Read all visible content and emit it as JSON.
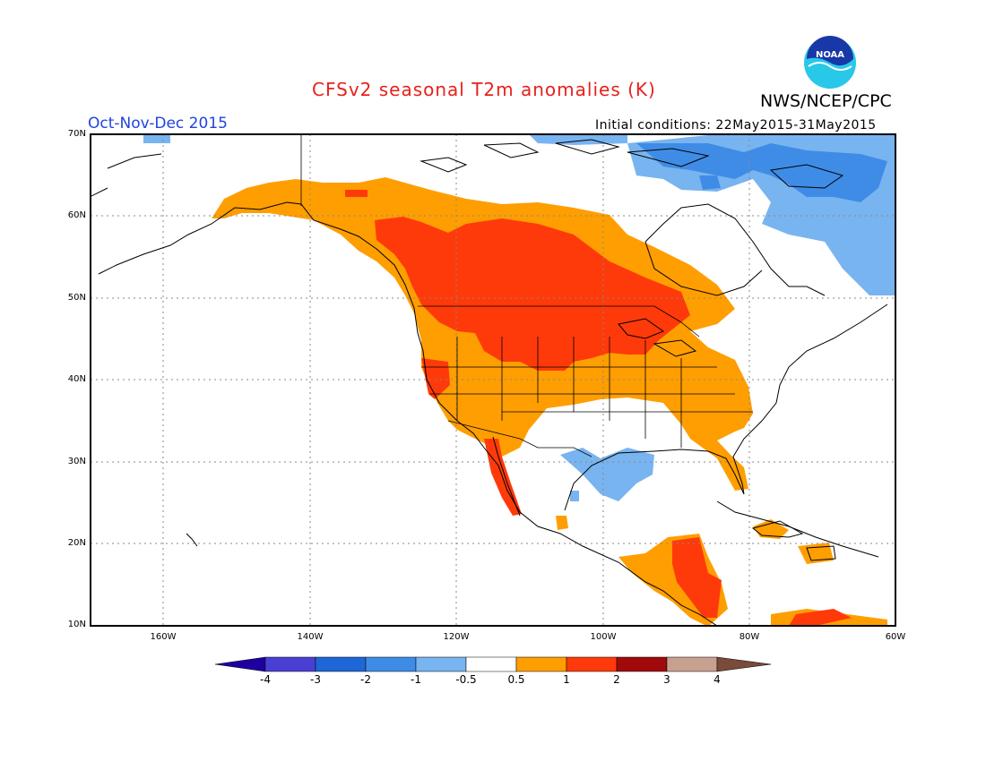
{
  "header": {
    "title": "CFSv2 seasonal T2m anomalies (K)",
    "agency": "NWS/NCEP/CPC",
    "season": "Oct-Nov-Dec 2015",
    "initial_conditions": "Initial conditions: 22May2015-31May2015",
    "logo_text": "NOAA"
  },
  "map": {
    "lat_labels": [
      "70N",
      "60N",
      "50N",
      "40N",
      "30N",
      "20N",
      "10N"
    ],
    "lon_labels": [
      "160W",
      "140W",
      "120W",
      "100W",
      "80W",
      "60W"
    ],
    "lat_range": [
      10,
      70
    ],
    "lon_range": [
      -170,
      -60
    ],
    "anomaly_regions": [
      {
        "name": "Western Canada and northern U.S. Plains",
        "category": "1 to 2"
      },
      {
        "name": "Alaska, western Canada, western and central U.S.",
        "category": "0.5 to 1"
      },
      {
        "name": "Southern U.S. Plains and Southeast",
        "category": "-0.5 to 0.5"
      },
      {
        "name": "Texas Gulf coast and northern Mexico",
        "category": "-1 to -0.5"
      },
      {
        "name": "Arctic Canada and Labrador",
        "category": "-1 to -0.5"
      },
      {
        "name": "Central America",
        "category": "1 to 2"
      },
      {
        "name": "Caribbean",
        "category": "0.5 to 1"
      }
    ]
  },
  "colorbar": {
    "labels": [
      "-4",
      "-3",
      "-2",
      "-1",
      "-0.5",
      "0.5",
      "1",
      "2",
      "3",
      "4"
    ],
    "colors": [
      "#1e00a0",
      "#4a3fd4",
      "#1f66d6",
      "#3f8ce6",
      "#78b4f0",
      "#ffffff",
      "#ff9e00",
      "#ff3a0a",
      "#a00a0a",
      "#c8a090",
      "#7a4a3a"
    ]
  }
}
